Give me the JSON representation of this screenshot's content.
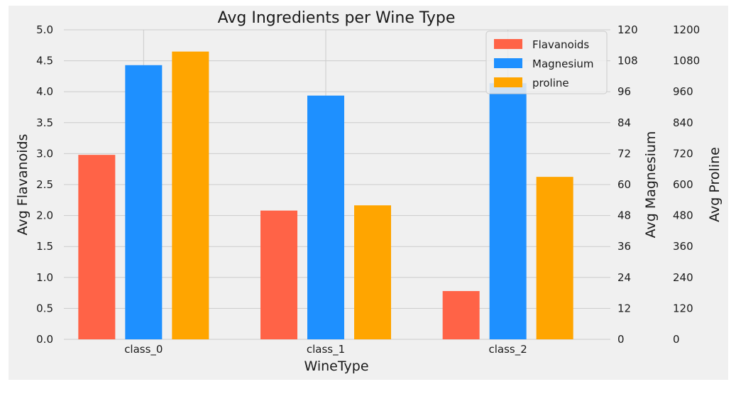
{
  "chart_data": {
    "type": "bar",
    "title": "Avg Ingredients per Wine Type",
    "xlabel": "WineType",
    "categories": [
      "class_0",
      "class_1",
      "class_2"
    ],
    "series": [
      {
        "name": "Flavanoids",
        "axis": "left",
        "color": "#ff6347",
        "values": [
          2.98,
          2.08,
          0.78
        ]
      },
      {
        "name": "Magnesium",
        "axis": "right1",
        "color": "#1e90ff",
        "values": [
          106.3,
          94.5,
          99.3
        ]
      },
      {
        "name": "proline",
        "axis": "right2",
        "color": "#ffa500",
        "values": [
          1115.7,
          519.5,
          629.9
        ]
      }
    ],
    "axes": {
      "left": {
        "label": "Avg Flavanoids",
        "ylim": [
          0,
          5
        ],
        "ticks": [
          "0.0",
          "0.5",
          "1.0",
          "1.5",
          "2.0",
          "2.5",
          "3.0",
          "3.5",
          "4.0",
          "4.5",
          "5.0"
        ]
      },
      "right1": {
        "label": "Avg Magnesium",
        "ylim": [
          0,
          120
        ],
        "ticks": [
          "0",
          "12",
          "24",
          "36",
          "48",
          "60",
          "72",
          "84",
          "96",
          "108",
          "120"
        ]
      },
      "right2": {
        "label": "Avg Proline",
        "ylim": [
          0,
          1200
        ],
        "ticks": [
          "0",
          "120",
          "240",
          "360",
          "480",
          "600",
          "720",
          "840",
          "960",
          "1080",
          "1200"
        ]
      }
    },
    "grid": true,
    "legend_position": "top-right",
    "background": "#f0f0f0"
  }
}
